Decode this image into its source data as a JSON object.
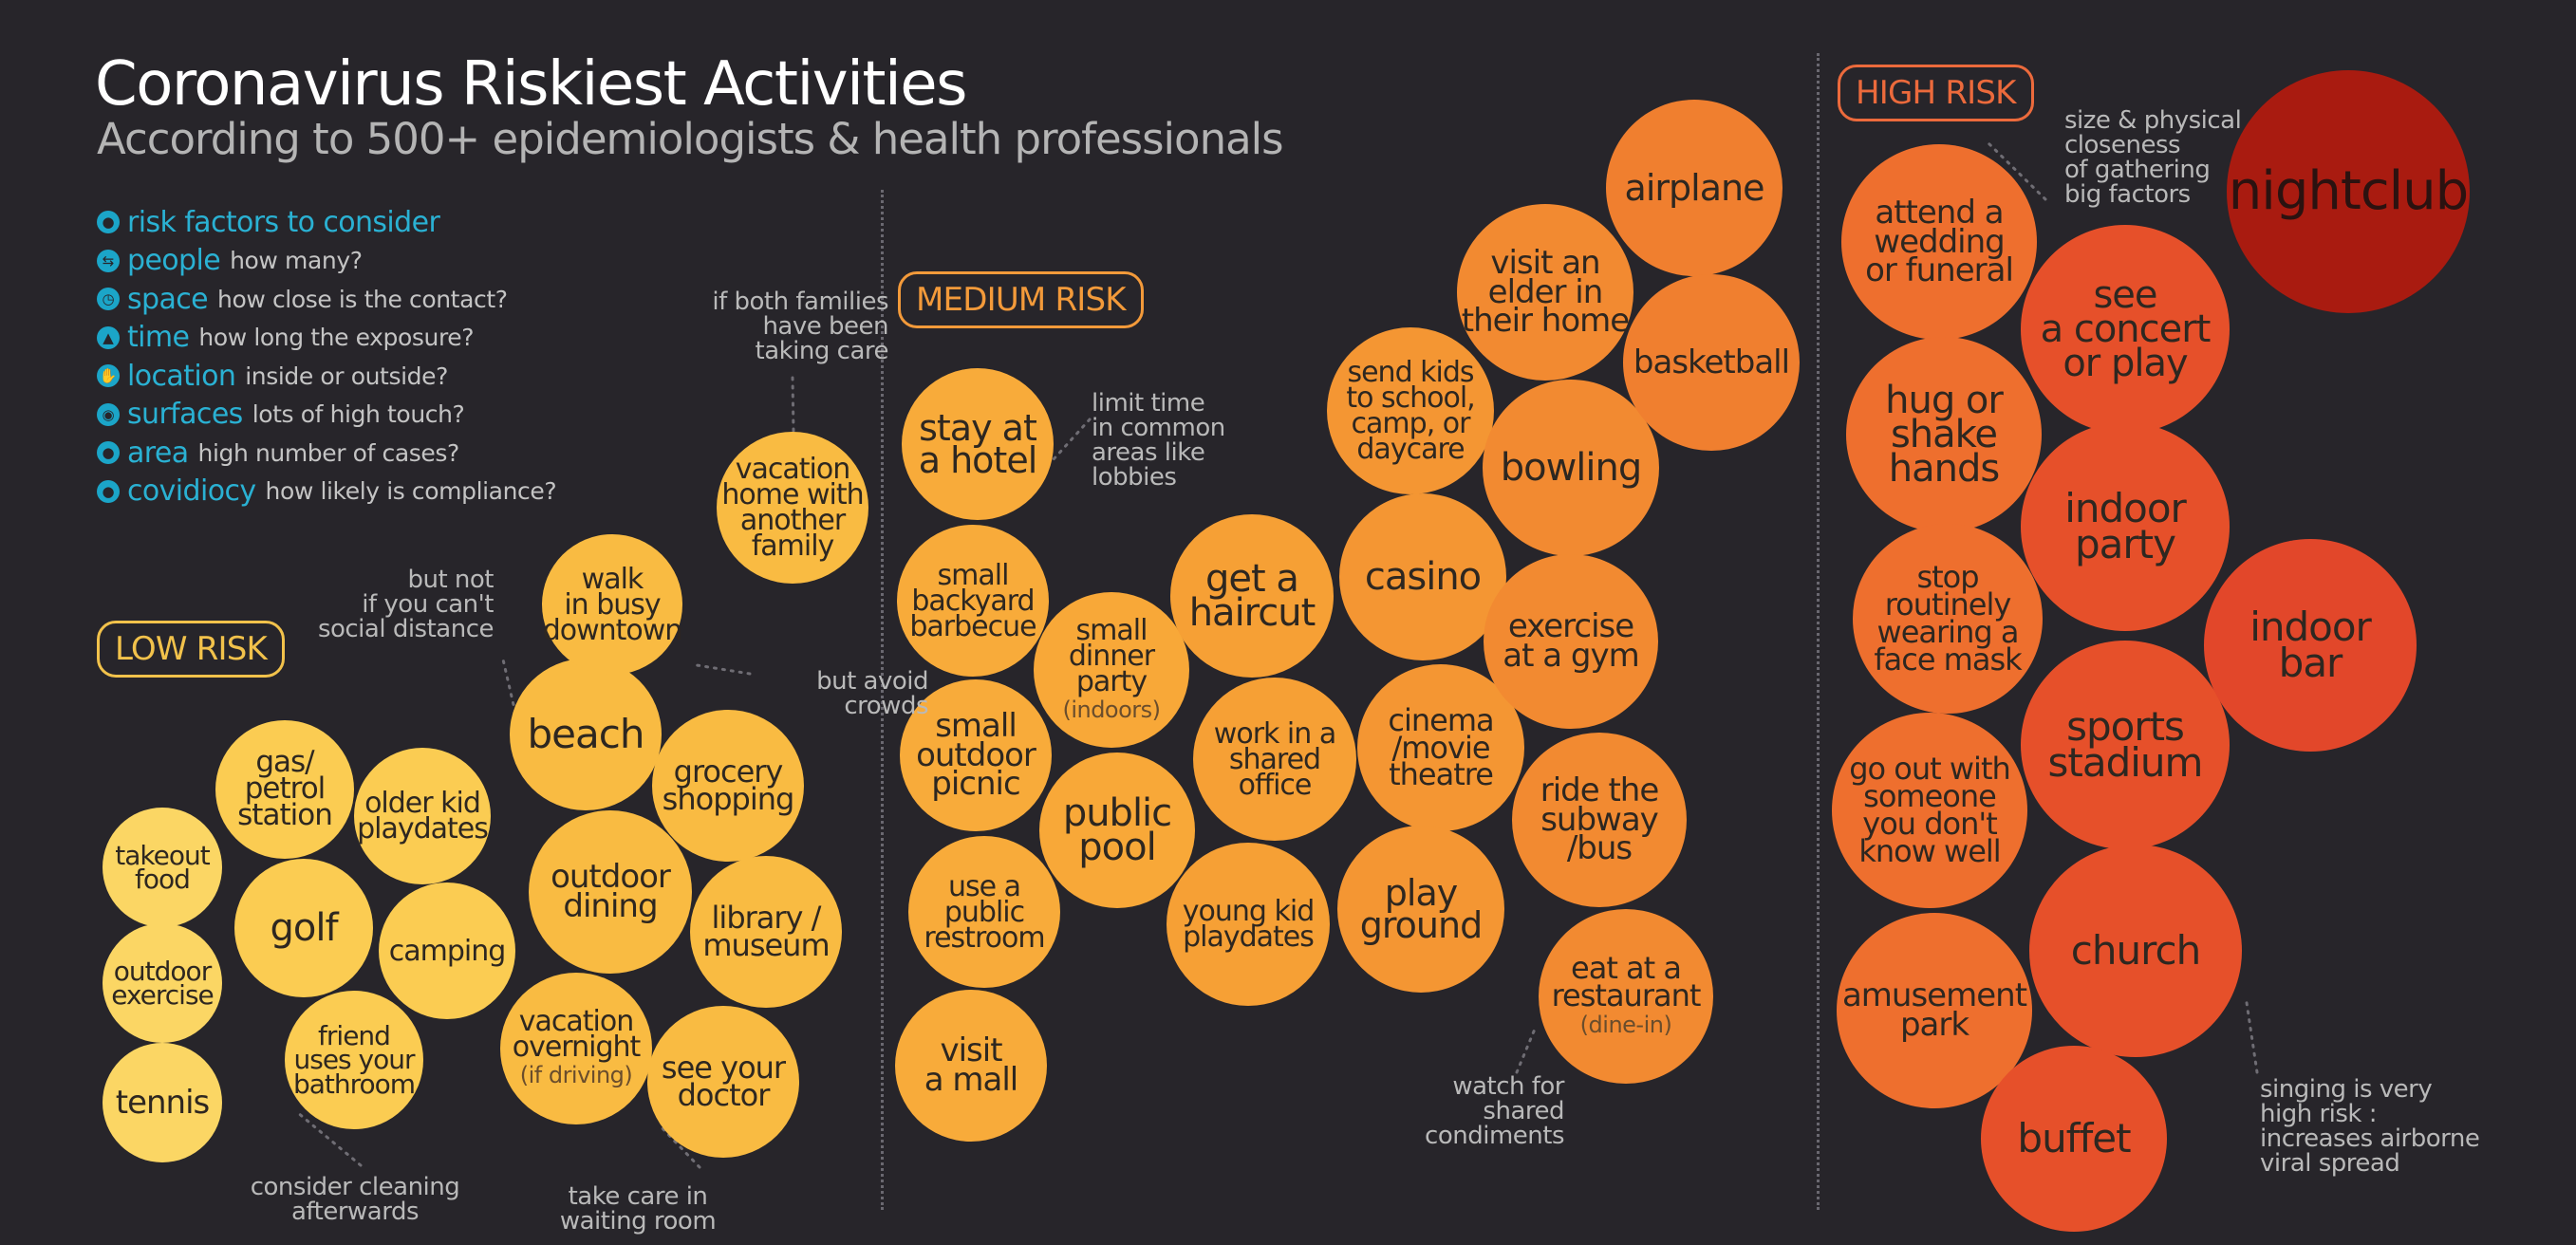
{
  "header": {
    "title": "Coronavirus Riskiest Activities",
    "subtitle": "According to 500+ epidemiologists & health professionals"
  },
  "legend": {
    "heading": "risk factors to consider",
    "items": [
      {
        "name": "people",
        "desc": "how many?",
        "icon": "people-icon"
      },
      {
        "name": "space",
        "desc": "how close is the contact?",
        "icon": "arrows-icon"
      },
      {
        "name": "time",
        "desc": "how long the exposure?",
        "icon": "clock-icon"
      },
      {
        "name": "location",
        "desc": "inside or outside?",
        "icon": "tree-icon"
      },
      {
        "name": "surfaces",
        "desc": "lots of high touch?",
        "icon": "hand-icon"
      },
      {
        "name": "area",
        "desc": "high number of cases?",
        "icon": "globe-icon"
      },
      {
        "name": "covidiocy",
        "desc": "how likely is compliance?",
        "icon": "head-icon"
      }
    ]
  },
  "categories": {
    "low": "LOW RISK",
    "medium": "MEDIUM RISK",
    "high": "HIGH RISK"
  },
  "colors": {
    "background": "#27252a",
    "legend": "#2ab1d3",
    "low_label": "#f2c24b",
    "medium_label": "#f39a3a",
    "high_label": "#ec6a3c"
  },
  "activities": {
    "low": [
      {
        "label": "takeout\nfood",
        "color": "#fbd664"
      },
      {
        "label": "outdoor\nexercise",
        "color": "#fbd664"
      },
      {
        "label": "tennis",
        "color": "#fbd664"
      },
      {
        "label": "gas/\npetrol\nstation",
        "color": "#fbcc52"
      },
      {
        "label": "golf",
        "color": "#fbcc52"
      },
      {
        "label": "older kid\nplaydates",
        "color": "#fbcc52"
      },
      {
        "label": "camping",
        "color": "#fbcc52"
      },
      {
        "label": "friend\nuses your\nbathroom",
        "color": "#fbcc52"
      },
      {
        "label": "beach",
        "color": "#f9bb42"
      },
      {
        "label": "walk\nin busy\ndowntown",
        "color": "#f9bb42"
      },
      {
        "label": "grocery\nshopping",
        "color": "#f9bb42"
      },
      {
        "label": "outdoor\ndining",
        "color": "#f9bb42"
      },
      {
        "label": "library /\nmuseum",
        "color": "#f9bb42"
      },
      {
        "label": "vacation\novernight",
        "sub": "(if driving)",
        "color": "#f9bb42"
      },
      {
        "label": "see your\ndoctor",
        "color": "#f9bb42"
      },
      {
        "label": "vacation\nhome with\nanother\nfamily",
        "color": "#f9bb42"
      }
    ],
    "medium": [
      {
        "label": "stay at\na hotel",
        "color": "#f8ab3a"
      },
      {
        "label": "small\nbackyard\nbarbecue",
        "color": "#f8ab3a"
      },
      {
        "label": "small\noutdoor\npicnic",
        "color": "#f8ab3a"
      },
      {
        "label": "use a\npublic\nrestroom",
        "color": "#f8ab3a"
      },
      {
        "label": "visit\na mall",
        "color": "#f8ab3a"
      },
      {
        "label": "small\ndinner\nparty",
        "sub": "(indoors)",
        "color": "#f8a838"
      },
      {
        "label": "public\npool",
        "color": "#f8a838"
      },
      {
        "label": "get a\nhaircut",
        "color": "#f6a035"
      },
      {
        "label": "work in a\nshared\noffice",
        "color": "#f6a035"
      },
      {
        "label": "young kid\nplaydates",
        "color": "#f6a035"
      },
      {
        "label": "casino",
        "color": "#f49633"
      },
      {
        "label": "cinema\n/movie\ntheatre",
        "color": "#f49633"
      },
      {
        "label": "play\nground",
        "color": "#f49633"
      },
      {
        "label": "send kids\nto school,\ncamp, or\ndaycare",
        "color": "#f49633"
      },
      {
        "label": "visit an\nelder in\ntheir home",
        "color": "#f28a31"
      },
      {
        "label": "bowling",
        "color": "#f28a31"
      },
      {
        "label": "exercise\nat a gym",
        "color": "#f28a31"
      },
      {
        "label": "ride the\nsubway\n/bus",
        "color": "#f28a31"
      },
      {
        "label": "eat at a\nrestaurant",
        "sub": "(dine-in)",
        "color": "#f28a31"
      },
      {
        "label": "airplane",
        "color": "#f07f2f"
      },
      {
        "label": "basketball",
        "color": "#f07f2f"
      }
    ],
    "high": [
      {
        "label": "attend a\nwedding\nor funeral",
        "color": "#ee6f2e"
      },
      {
        "label": "hug or\nshake\nhands",
        "color": "#ee6f2e"
      },
      {
        "label": "stop\nroutinely\nwearing a\nface mask",
        "color": "#ee6f2e"
      },
      {
        "label": "go out with\nsomeone\nyou don't\nknow well",
        "color": "#ee6f2e"
      },
      {
        "label": "amusement\npark",
        "color": "#ee6f2e"
      },
      {
        "label": "see\na concert\nor play",
        "color": "#e6502a"
      },
      {
        "label": "indoor\nparty",
        "color": "#e6502a"
      },
      {
        "label": "sports\nstadium",
        "color": "#e6502a"
      },
      {
        "label": "church",
        "color": "#e6502a"
      },
      {
        "label": "buffet",
        "color": "#e6502a"
      },
      {
        "label": "indoor\nbar",
        "color": "#e2472a"
      },
      {
        "label": "nightclub",
        "color": "#a91b10"
      }
    ]
  },
  "notes": [
    {
      "text": "but not\nif you can't\nsocial distance"
    },
    {
      "text": "if both families\nhave been\ntaking care"
    },
    {
      "text": "but avoid\ncrowds"
    },
    {
      "text": "consider cleaning\nafterwards"
    },
    {
      "text": "take care in\nwaiting room"
    },
    {
      "text": "limit time\nin common\nareas like\nlobbies"
    },
    {
      "text": "watch for\nshared\ncondiments"
    },
    {
      "text": "size & physical\ncloseness\nof gathering\nbig factors"
    },
    {
      "text": "singing is very\nhigh risk :\nincreases airborne\nviral spread"
    }
  ]
}
